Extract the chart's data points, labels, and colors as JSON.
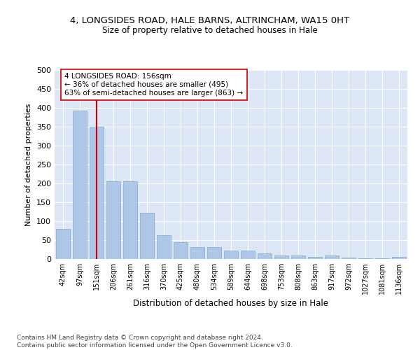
{
  "title1": "4, LONGSIDES ROAD, HALE BARNS, ALTRINCHAM, WA15 0HT",
  "title2": "Size of property relative to detached houses in Hale",
  "xlabel": "Distribution of detached houses by size in Hale",
  "ylabel": "Number of detached properties",
  "categories": [
    "42sqm",
    "97sqm",
    "151sqm",
    "206sqm",
    "261sqm",
    "316sqm",
    "370sqm",
    "425sqm",
    "480sqm",
    "534sqm",
    "589sqm",
    "644sqm",
    "698sqm",
    "753sqm",
    "808sqm",
    "863sqm",
    "917sqm",
    "972sqm",
    "1027sqm",
    "1081sqm",
    "1136sqm"
  ],
  "values": [
    80,
    393,
    350,
    205,
    205,
    122,
    63,
    44,
    32,
    32,
    23,
    23,
    14,
    10,
    10,
    6,
    10,
    3,
    2,
    2,
    5
  ],
  "bar_color": "#aec6e8",
  "bar_edge_color": "#7aaed0",
  "vline_x": 2,
  "vline_color": "#cc0000",
  "annotation_text": "4 LONGSIDES ROAD: 156sqm\n← 36% of detached houses are smaller (495)\n63% of semi-detached houses are larger (863) →",
  "annotation_box_color": "#ffffff",
  "annotation_box_edge_color": "#cc0000",
  "ylim": [
    0,
    500
  ],
  "yticks": [
    0,
    50,
    100,
    150,
    200,
    250,
    300,
    350,
    400,
    450,
    500
  ],
  "footer": "Contains HM Land Registry data © Crown copyright and database right 2024.\nContains public sector information licensed under the Open Government Licence v3.0.",
  "bg_color": "#ffffff",
  "plot_bg_color": "#dce6f5"
}
